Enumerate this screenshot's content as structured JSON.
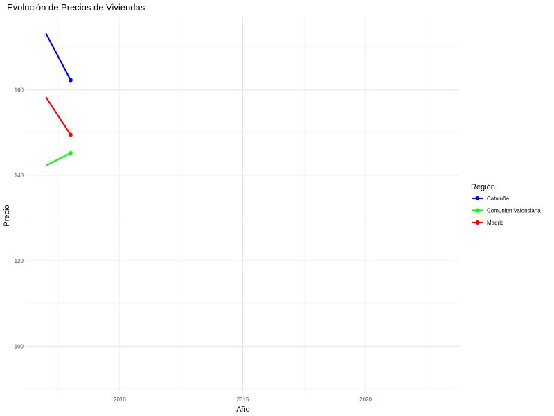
{
  "chart_data": {
    "type": "line",
    "title": "Evolución de Precios de Viviendas",
    "xlabel": "Año",
    "ylabel": "Precio",
    "xlim": [
      2006.2,
      2023.8
    ],
    "ylim": [
      89,
      177
    ],
    "x_ticks": [
      2010,
      2015,
      2020
    ],
    "y_ticks": [
      100,
      120,
      140,
      160
    ],
    "grid": true,
    "legend_title": "Región",
    "legend_position": "right",
    "series": [
      {
        "name": "Cataluña",
        "color": "#0000ff",
        "x": [
          2007,
          2008
        ],
        "values": [
          173.2,
          162.3
        ]
      },
      {
        "name": "Comunitat Valenciana",
        "color": "#00ff00",
        "x": [
          2007,
          2008
        ],
        "values": [
          142.3,
          145.2
        ]
      },
      {
        "name": "Madrid",
        "color": "#ff0000",
        "x": [
          2007,
          2008
        ],
        "values": [
          158.3,
          149.5
        ]
      }
    ]
  }
}
